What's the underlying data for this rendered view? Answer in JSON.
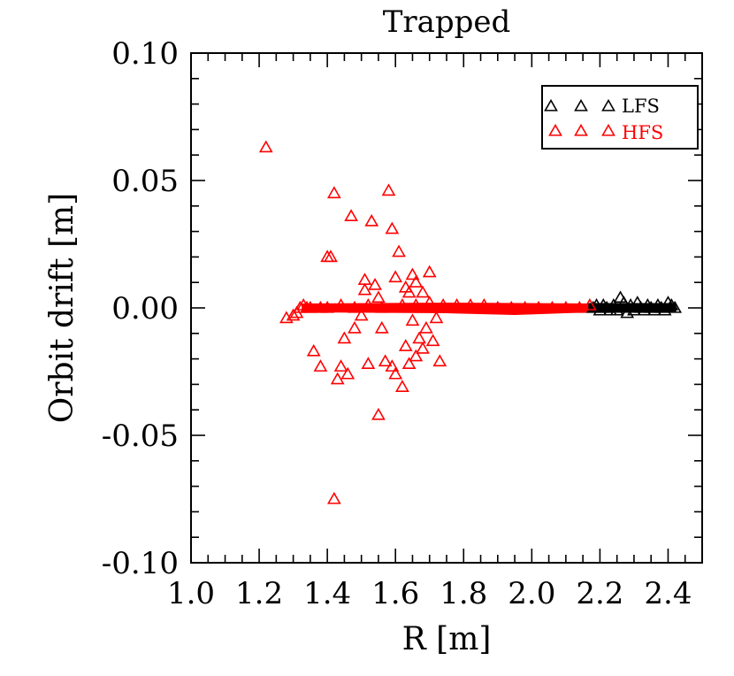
{
  "chart_data": {
    "type": "scatter",
    "title": "Trapped",
    "xlabel": "R [m]",
    "ylabel": "Orbit drift [m]",
    "xlim": [
      1.0,
      2.5
    ],
    "ylim": [
      -0.1,
      0.1
    ],
    "xticks": [
      "1.0",
      "1.2",
      "1.4",
      "1.6",
      "1.8",
      "2.0",
      "2.2",
      "2.4"
    ],
    "yticks": [
      "0.10",
      "0.05",
      "0.00",
      "-0.05",
      "-0.10"
    ],
    "grid": false,
    "legend_position": "top-right",
    "marker": "open-triangle",
    "series": [
      {
        "name": "LFS",
        "color": "#000000",
        "points": [
          [
            2.18,
            0.0
          ],
          [
            2.19,
            0.001
          ],
          [
            2.2,
            -0.001
          ],
          [
            2.21,
            0.001
          ],
          [
            2.22,
            0.0
          ],
          [
            2.23,
            -0.001
          ],
          [
            2.24,
            0.001
          ],
          [
            2.25,
            -0.001
          ],
          [
            2.26,
            0.004
          ],
          [
            2.27,
            0.002
          ],
          [
            2.28,
            -0.002
          ],
          [
            2.29,
            0.001
          ],
          [
            2.3,
            -0.001
          ],
          [
            2.31,
            0.002
          ],
          [
            2.32,
            0.0
          ],
          [
            2.33,
            -0.001
          ],
          [
            2.34,
            0.001
          ],
          [
            2.35,
            0.0
          ],
          [
            2.36,
            -0.001
          ],
          [
            2.37,
            0.001
          ],
          [
            2.38,
            0.0
          ],
          [
            2.39,
            -0.001
          ],
          [
            2.4,
            0.002
          ],
          [
            2.41,
            0.001
          ],
          [
            2.42,
            0.0
          ]
        ]
      },
      {
        "name": "HFS",
        "color": "#ff0000",
        "points": [
          [
            1.22,
            0.063
          ],
          [
            1.28,
            -0.004
          ],
          [
            1.3,
            -0.003
          ],
          [
            1.31,
            -0.002
          ],
          [
            1.32,
            0.0
          ],
          [
            1.33,
            0.001
          ],
          [
            1.34,
            0.0
          ],
          [
            1.36,
            -0.017
          ],
          [
            1.38,
            -0.023
          ],
          [
            1.4,
            0.02
          ],
          [
            1.41,
            0.02
          ],
          [
            1.42,
            0.045
          ],
          [
            1.42,
            -0.075
          ],
          [
            1.43,
            -0.028
          ],
          [
            1.44,
            -0.023
          ],
          [
            1.45,
            -0.012
          ],
          [
            1.46,
            -0.026
          ],
          [
            1.47,
            0.036
          ],
          [
            1.48,
            -0.008
          ],
          [
            1.5,
            -0.003
          ],
          [
            1.51,
            0.011
          ],
          [
            1.51,
            0.007
          ],
          [
            1.52,
            -0.022
          ],
          [
            1.53,
            0.034
          ],
          [
            1.54,
            0.009
          ],
          [
            1.55,
            -0.042
          ],
          [
            1.55,
            0.004
          ],
          [
            1.56,
            -0.008
          ],
          [
            1.57,
            -0.021
          ],
          [
            1.58,
            0.046
          ],
          [
            1.59,
            -0.023
          ],
          [
            1.59,
            0.031
          ],
          [
            1.6,
            0.012
          ],
          [
            1.6,
            -0.026
          ],
          [
            1.61,
            0.022
          ],
          [
            1.62,
            -0.031
          ],
          [
            1.63,
            -0.015
          ],
          [
            1.63,
            0.008
          ],
          [
            1.64,
            -0.022
          ],
          [
            1.64,
            0.006
          ],
          [
            1.65,
            0.013
          ],
          [
            1.65,
            -0.005
          ],
          [
            1.66,
            -0.019
          ],
          [
            1.66,
            0.01
          ],
          [
            1.67,
            -0.012
          ],
          [
            1.68,
            0.006
          ],
          [
            1.68,
            -0.016
          ],
          [
            1.69,
            -0.008
          ],
          [
            1.7,
            0.014
          ],
          [
            1.71,
            -0.013
          ],
          [
            1.72,
            -0.004
          ],
          [
            1.73,
            -0.021
          ],
          [
            1.35,
            0.0
          ],
          [
            1.38,
            0.0
          ],
          [
            1.4,
            0.0
          ],
          [
            1.44,
            0.001
          ],
          [
            1.48,
            0.0
          ],
          [
            1.52,
            0.001
          ],
          [
            1.56,
            0.0
          ],
          [
            1.62,
            0.001
          ],
          [
            1.66,
            0.001
          ],
          [
            1.7,
            0.002
          ],
          [
            1.74,
            0.001
          ],
          [
            1.78,
            0.001
          ],
          [
            1.82,
            0.001
          ],
          [
            1.86,
            0.001
          ],
          [
            1.9,
            0.0
          ],
          [
            1.94,
            0.0
          ],
          [
            1.98,
            0.0
          ],
          [
            2.02,
            0.0
          ],
          [
            2.06,
            0.0
          ],
          [
            2.1,
            0.0
          ],
          [
            2.14,
            0.0
          ],
          [
            2.17,
            0.001
          ]
        ]
      }
    ]
  }
}
